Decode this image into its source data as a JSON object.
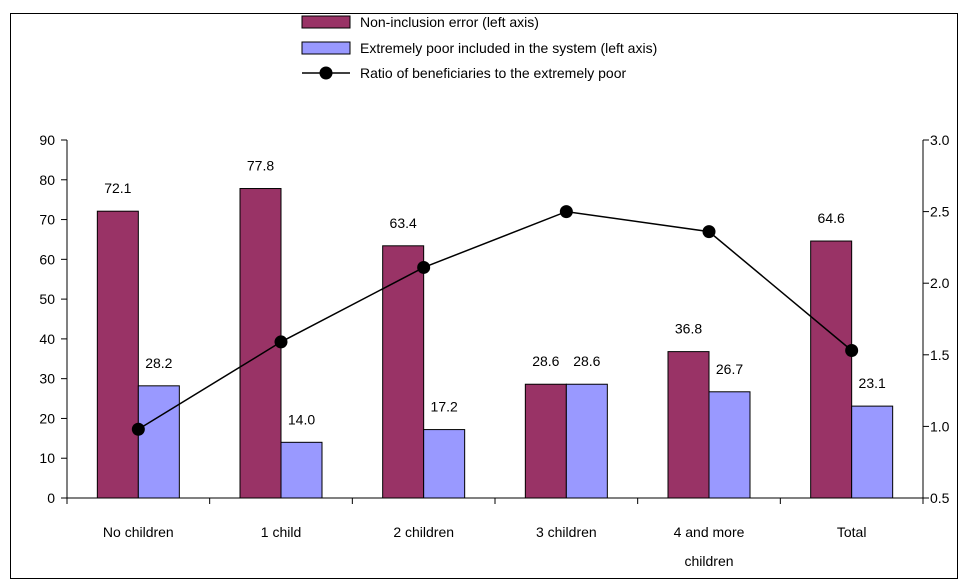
{
  "chart_data": {
    "type": "bar",
    "title": "",
    "xlabel": "",
    "ylabel": "",
    "categories": [
      "No children",
      "1 child",
      "2 children",
      "3 children",
      "4 and more children",
      "Total"
    ],
    "category_lines": [
      [
        "No children"
      ],
      [
        "1 child"
      ],
      [
        "2 children"
      ],
      [
        "3 children"
      ],
      [
        "4 and more",
        "children"
      ],
      [
        "Total"
      ]
    ],
    "series": [
      {
        "name": "Non-inclusion error (left axis)",
        "kind": "bar",
        "axis": "left",
        "color": "#993366",
        "values": [
          72.1,
          77.8,
          63.4,
          28.6,
          36.8,
          64.6
        ],
        "labels": [
          "72.1",
          "77.8",
          "63.4",
          "28.6",
          "36.8",
          "64.6"
        ]
      },
      {
        "name": "Extremely poor included in the system (left axis)",
        "kind": "bar",
        "axis": "left",
        "color": "#9999FF",
        "values": [
          28.2,
          14.0,
          17.2,
          28.6,
          26.7,
          23.1
        ],
        "labels": [
          "28.2",
          "14.0",
          "17.2",
          "28.6",
          "26.7",
          "23.1"
        ]
      },
      {
        "name": "Ratio of beneficiaries to the extremely poor",
        "kind": "line",
        "axis": "right",
        "color": "#000000",
        "values": [
          0.98,
          1.59,
          2.11,
          2.5,
          2.36,
          1.53
        ]
      }
    ],
    "y_left": {
      "range": [
        0,
        90
      ],
      "ticks": [
        "0",
        "10",
        "20",
        "30",
        "40",
        "50",
        "60",
        "70",
        "80",
        "90"
      ]
    },
    "y_right": {
      "range": [
        0.5,
        3.0
      ],
      "ticks": [
        "0.5",
        "1.0",
        "1.5",
        "2.0",
        "2.5",
        "3.0"
      ]
    },
    "grid": false,
    "legend_position": "top-center"
  }
}
